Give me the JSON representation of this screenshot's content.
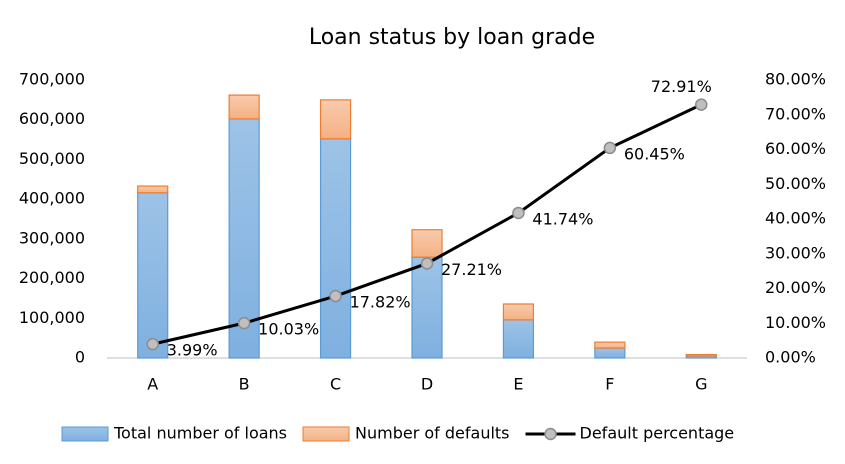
{
  "chart_data": {
    "type": "bar_line",
    "title": "Loan status by loan grade",
    "categories": [
      "A",
      "B",
      "C",
      "D",
      "E",
      "F",
      "G"
    ],
    "series": [
      {
        "name": "Total number of loans",
        "color": "#9dc3e6",
        "type": "bar",
        "axis": "y",
        "values": [
          416000,
          602000,
          552000,
          254000,
          96000,
          25000,
          5000
        ]
      },
      {
        "name": "Number of defaults",
        "color": "#f8cbad",
        "type": "bar",
        "axis": "y",
        "values": [
          17000,
          60000,
          98000,
          69000,
          40000,
          15000,
          3600
        ]
      },
      {
        "name": "Default percentage",
        "color": "#000000",
        "type": "line",
        "axis": "y2",
        "values": [
          3.99,
          10.03,
          17.82,
          27.21,
          41.74,
          60.45,
          72.91
        ],
        "value_labels": [
          "3.99%",
          "10.03%",
          "17.82%",
          "27.21%",
          "41.74%",
          "60.45%",
          "72.91%"
        ]
      }
    ],
    "stacked": true,
    "ylim": [
      0,
      700000
    ],
    "yticks": [
      0,
      {
        "value": 100000,
        "label": "100,000"
      },
      {
        "value": 200000,
        "label": "200,000"
      },
      {
        "value": 300000,
        "label": "300,000"
      },
      {
        "value": 400000,
        "label": "400,000"
      },
      {
        "value": 500000,
        "label": "500,000"
      },
      {
        "value": 600000,
        "label": "600,000"
      },
      {
        "value": 700000,
        "label": "700,000"
      }
    ],
    "y2lim": [
      0,
      80
    ],
    "y2ticks": [
      {
        "value": 0,
        "label": "0.00%"
      },
      {
        "value": 10,
        "label": "10.00%"
      },
      {
        "value": 20,
        "label": "20.00%"
      },
      {
        "value": 30,
        "label": "30.00%"
      },
      {
        "value": 40,
        "label": "40.00%"
      },
      {
        "value": 50,
        "label": "50.00%"
      },
      {
        "value": 60,
        "label": "60.00%"
      },
      {
        "value": 70,
        "label": "70.00%"
      },
      {
        "value": 80,
        "label": "80.00%"
      }
    ],
    "grid": false,
    "legend": "bottom"
  }
}
